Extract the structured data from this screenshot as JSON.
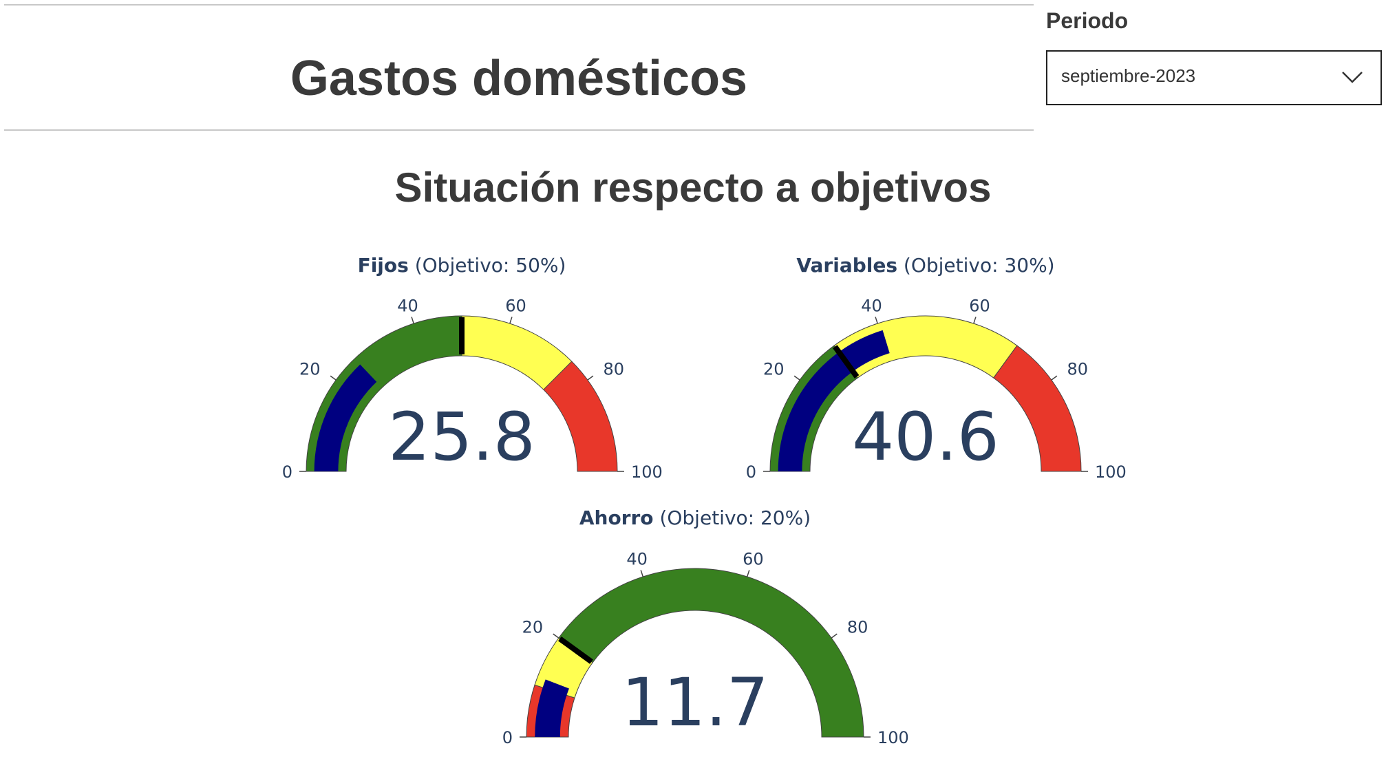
{
  "header": {
    "title": "Gastos domésticos"
  },
  "filter": {
    "label": "Periodo",
    "selected": "septiembre-2023"
  },
  "section": {
    "title": "Situación respecto a objetivos"
  },
  "colors": {
    "green": "#38801f",
    "yellow": "#ffff52",
    "red": "#e8372a",
    "bar": "#000080",
    "threshold": "#000000",
    "text": "#2a3f5f"
  },
  "chart_data": [
    {
      "type": "gauge",
      "title_bold": "Fijos",
      "title_rest": " (Objetivo: 50%)",
      "value": 25.8,
      "value_label": "25.8",
      "range": [
        0,
        100
      ],
      "ticks": [
        "0",
        "20",
        "40",
        "60",
        "80",
        "100"
      ],
      "threshold": 50,
      "steps": [
        {
          "from": 0,
          "to": 50,
          "color": "green"
        },
        {
          "from": 50,
          "to": 75,
          "color": "yellow"
        },
        {
          "from": 75,
          "to": 100,
          "color": "red"
        }
      ]
    },
    {
      "type": "gauge",
      "title_bold": "Variables",
      "title_rest": " (Objetivo: 30%)",
      "value": 40.6,
      "value_label": "40.6",
      "range": [
        0,
        100
      ],
      "ticks": [
        "0",
        "20",
        "40",
        "60",
        "80",
        "100"
      ],
      "threshold": 30,
      "steps": [
        {
          "from": 0,
          "to": 30,
          "color": "green"
        },
        {
          "from": 30,
          "to": 70,
          "color": "yellow"
        },
        {
          "from": 70,
          "to": 100,
          "color": "red"
        }
      ]
    },
    {
      "type": "gauge",
      "title_bold": "Ahorro",
      "title_rest": " (Objetivo: 20%)",
      "value": 11.7,
      "value_label": "11.7",
      "range": [
        0,
        100
      ],
      "ticks": [
        "0",
        "20",
        "40",
        "60",
        "80",
        "100"
      ],
      "threshold": 20,
      "steps": [
        {
          "from": 0,
          "to": 10,
          "color": "red"
        },
        {
          "from": 10,
          "to": 20,
          "color": "yellow"
        },
        {
          "from": 20,
          "to": 100,
          "color": "green"
        }
      ]
    }
  ]
}
